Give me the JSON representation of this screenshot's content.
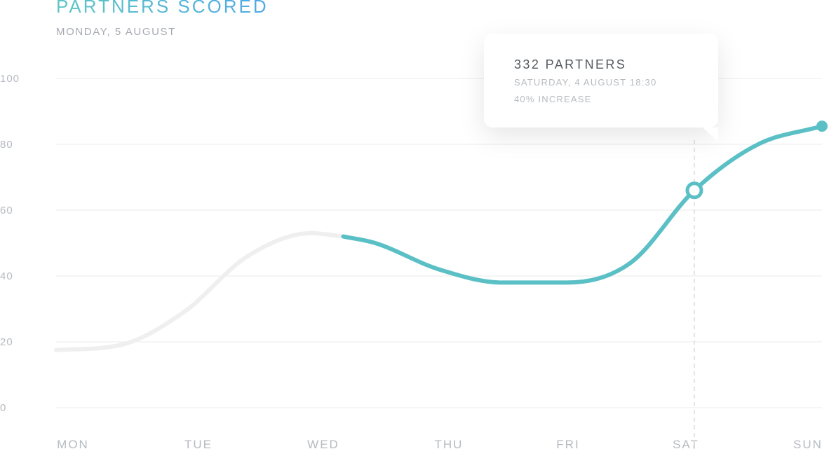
{
  "header": {
    "title": "PARTNERS SCORED",
    "subtitle": "MONDAY, 5 AUGUST"
  },
  "tooltip": {
    "title": "332 PARTNERS",
    "date": "SATURDAY, 4 AUGUST 18:30",
    "change": "40% INCREASE"
  },
  "colors": {
    "accent": "#5bc0c5",
    "muted_line": "#efefef",
    "grid": "#efefef",
    "tick": "#b6babf"
  },
  "chart_data": {
    "type": "line",
    "title": "PARTNERS SCORED",
    "subtitle": "MONDAY, 5 AUGUST",
    "categories": [
      "MON",
      "TUE",
      "WED",
      "THU",
      "FRI",
      "SAT",
      "SUN"
    ],
    "yticks": [
      "0",
      "20",
      "40",
      "60",
      "80",
      "100"
    ],
    "ylim": [
      0,
      100
    ],
    "grid": true,
    "series": [
      {
        "x": [
          0,
          0.5,
          1,
          1.5,
          2,
          2.25,
          2.5,
          3,
          3.5,
          4,
          4.5,
          5,
          5.5,
          6
        ],
        "values": [
          17.5,
          19,
          29,
          46,
          53,
          52,
          50,
          42,
          38,
          38,
          44,
          66,
          80,
          85.5
        ],
        "highlight_from_x": 2.25
      }
    ],
    "highlight_point": {
      "x": 5,
      "y": 66
    },
    "end_point": {
      "x": 6,
      "y": 85.5
    }
  }
}
